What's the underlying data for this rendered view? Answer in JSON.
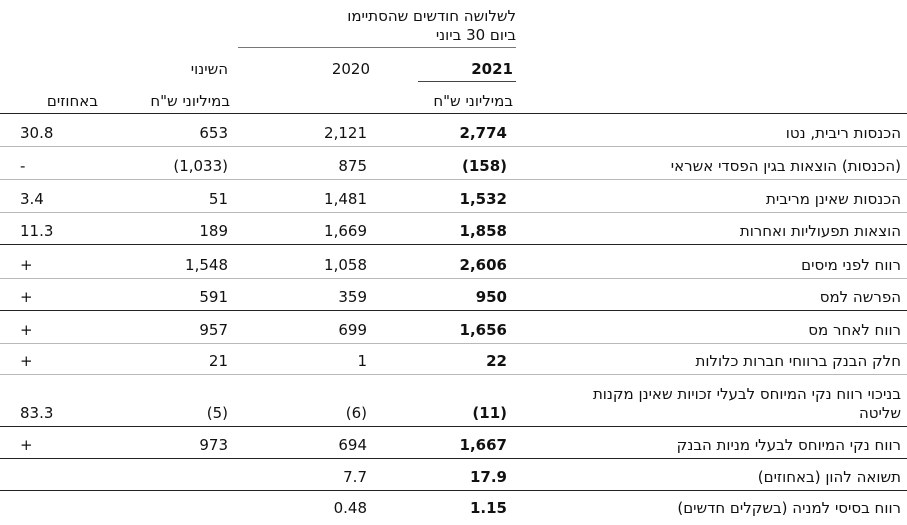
{
  "header": {
    "period_line1": "לשלושה חודשים שהסתיימו",
    "period_line2": "ביום 30 ביוני",
    "year_2021": "2021",
    "year_2020": "2020",
    "change": "השינוי",
    "unit_2021": "במיליוני ש\"ח",
    "unit_change": "במיליוני ש\"ח",
    "unit_pct": "באחוזים"
  },
  "rows": [
    {
      "label": "הכנסות ריבית, נטו",
      "v2021": "2,774",
      "v2020": "2,121",
      "change": "653",
      "pct": "30.8"
    },
    {
      "label": "(הכנסות) הוצאות בגין הפסדי אשראי",
      "v2021": "(158)",
      "v2020": "875",
      "change": "(1,033)",
      "pct": "-"
    },
    {
      "label": "הכנסות שאינן מריבית",
      "v2021": "1,532",
      "v2020": "1,481",
      "change": "51",
      "pct": "3.4"
    },
    {
      "label": "הוצאות תפעוליות ואחרות",
      "v2021": "1,858",
      "v2020": "1,669",
      "change": "189",
      "pct": "11.3"
    },
    {
      "label": "רווח לפני מיסים",
      "v2021": "2,606",
      "v2020": "1,058",
      "change": "1,548",
      "pct": "+"
    },
    {
      "label": "הפרשה למס",
      "v2021": "950",
      "v2020": "359",
      "change": "591",
      "pct": "+"
    },
    {
      "label": "רווח לאחר מס",
      "v2021": "1,656",
      "v2020": "699",
      "change": "957",
      "pct": "+"
    },
    {
      "label": "חלק הבנק ברווחי חברות כלולות",
      "v2021": "22",
      "v2020": "1",
      "change": "21",
      "pct": "+"
    },
    {
      "label": "בניכוי רווח נקי המיוחס לבעלי זכויות שאינן מקנות שליטה",
      "v2021": "(11)",
      "v2020": "(6)",
      "change": "(5)",
      "pct": "83.3"
    },
    {
      "label": "רווח נקי המיוחס לבעלי מניות הבנק",
      "v2021": "1,667",
      "v2020": "694",
      "change": "973",
      "pct": "+"
    },
    {
      "label": "תשואה להון (באחוזים)",
      "v2021": "17.9",
      "v2020": "7.7",
      "change": "",
      "pct": ""
    },
    {
      "label": "רווח בסיסי למניה (בשקלים חדשים)",
      "v2021": "1.15",
      "v2020": "0.48",
      "change": "",
      "pct": ""
    }
  ]
}
